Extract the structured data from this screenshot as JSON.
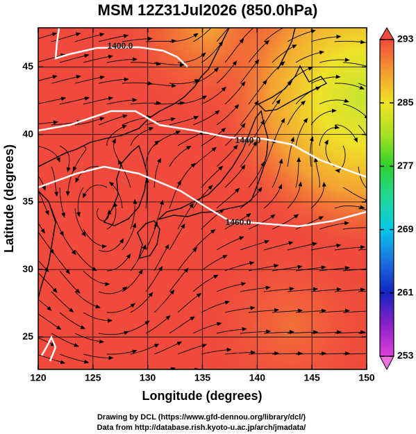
{
  "chart_data": {
    "type": "map",
    "title": "MSM 12Z31Jul2026 (850.0hPa)",
    "x_label": "Longitude (degrees)",
    "y_label": "Latitude  (degrees)",
    "xlim": [
      120,
      150
    ],
    "xticks": [
      120,
      125,
      130,
      135,
      140,
      145,
      150
    ],
    "ylim": [
      22.6,
      47.9
    ],
    "yticks": [
      25,
      30,
      35,
      40,
      45
    ],
    "grid": true,
    "colorbar": {
      "lim": [
        253,
        293
      ],
      "ticks": [
        253,
        261,
        269,
        277,
        285,
        293
      ],
      "colors": [
        "#e040d8",
        "#8a20c8",
        "#1424c0",
        "#1a70e0",
        "#08c8e8",
        "#20d898",
        "#30d030",
        "#a8e020",
        "#f0e424",
        "#f49a30",
        "#f04a3c"
      ]
    },
    "contours": [
      {
        "value": 1400,
        "label": "1400.0"
      },
      {
        "value": 1440,
        "label": "1440.0"
      },
      {
        "value": 1460,
        "label": "1460.0"
      }
    ],
    "contour_color": "#ffffff"
  },
  "footer": [
    "Drawing by DCL (https://www.gfd-dennou.org/library/dcl/)",
    "Data from http://database.rish.kyoto-u.ac.jp/arch/jmadata/"
  ]
}
